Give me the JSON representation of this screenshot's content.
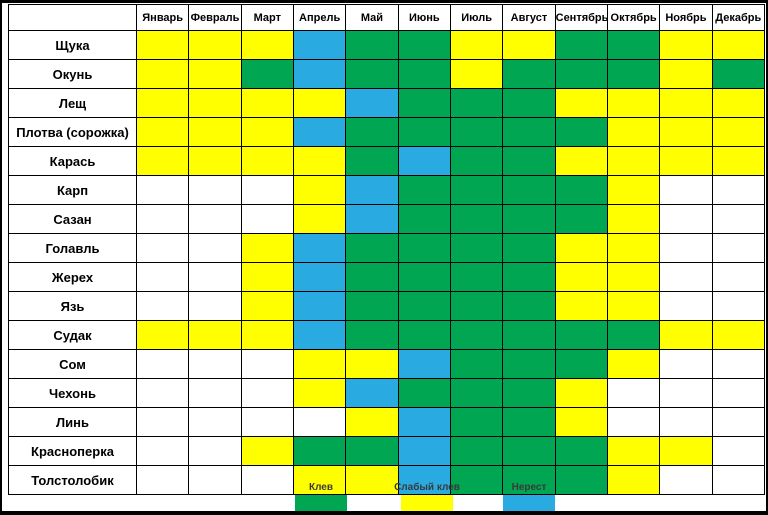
{
  "chart_data": {
    "type": "heatmap",
    "x_labels": [
      "Январь",
      "Февраль",
      "Март",
      "Апрель",
      "Май",
      "Июнь",
      "Июль",
      "Август",
      "Сентябрь",
      "Октябрь",
      "Ноябрь",
      "Декабрь"
    ],
    "corner_label": "",
    "rows": [
      {
        "name": "Щука",
        "values": [
          "weak",
          "weak",
          "weak",
          "spawn",
          "bite",
          "bite",
          "weak",
          "weak",
          "bite",
          "bite",
          "weak",
          "weak"
        ]
      },
      {
        "name": "Окунь",
        "values": [
          "weak",
          "weak",
          "bite",
          "spawn",
          "bite",
          "bite",
          "weak",
          "bite",
          "bite",
          "bite",
          "weak",
          "bite"
        ]
      },
      {
        "name": "Лещ",
        "values": [
          "weak",
          "weak",
          "weak",
          "weak",
          "spawn",
          "bite",
          "bite",
          "bite",
          "weak",
          "weak",
          "weak",
          "weak"
        ]
      },
      {
        "name": "Плотва (сорожка)",
        "values": [
          "weak",
          "weak",
          "weak",
          "spawn",
          "bite",
          "bite",
          "bite",
          "bite",
          "bite",
          "weak",
          "weak",
          "weak"
        ]
      },
      {
        "name": "Карась",
        "values": [
          "weak",
          "weak",
          "weak",
          "weak",
          "bite",
          "spawn",
          "bite",
          "bite",
          "weak",
          "weak",
          "weak",
          "weak"
        ]
      },
      {
        "name": "Карп",
        "values": [
          "none",
          "none",
          "none",
          "weak",
          "spawn",
          "bite",
          "bite",
          "bite",
          "bite",
          "weak",
          "none",
          "none"
        ]
      },
      {
        "name": "Сазан",
        "values": [
          "none",
          "none",
          "none",
          "weak",
          "spawn",
          "bite",
          "bite",
          "bite",
          "bite",
          "weak",
          "none",
          "none"
        ]
      },
      {
        "name": "Голавль",
        "values": [
          "none",
          "none",
          "weak",
          "spawn",
          "bite",
          "bite",
          "bite",
          "bite",
          "weak",
          "weak",
          "none",
          "none"
        ]
      },
      {
        "name": "Жерех",
        "values": [
          "none",
          "none",
          "weak",
          "spawn",
          "bite",
          "bite",
          "bite",
          "bite",
          "weak",
          "weak",
          "none",
          "none"
        ]
      },
      {
        "name": "Язь",
        "values": [
          "none",
          "none",
          "weak",
          "spawn",
          "bite",
          "bite",
          "bite",
          "bite",
          "weak",
          "weak",
          "none",
          "none"
        ]
      },
      {
        "name": "Судак",
        "values": [
          "weak",
          "weak",
          "weak",
          "spawn",
          "bite",
          "bite",
          "bite",
          "bite",
          "bite",
          "bite",
          "weak",
          "weak"
        ]
      },
      {
        "name": "Сом",
        "values": [
          "none",
          "none",
          "none",
          "weak",
          "weak",
          "spawn",
          "bite",
          "bite",
          "bite",
          "weak",
          "none",
          "none"
        ]
      },
      {
        "name": "Чехонь",
        "values": [
          "none",
          "none",
          "none",
          "weak",
          "spawn",
          "bite",
          "bite",
          "bite",
          "weak",
          "none",
          "none",
          "none"
        ]
      },
      {
        "name": "Линь",
        "values": [
          "none",
          "none",
          "none",
          "none",
          "weak",
          "spawn",
          "bite",
          "bite",
          "weak",
          "none",
          "none",
          "none"
        ]
      },
      {
        "name": "Красноперка",
        "values": [
          "none",
          "none",
          "weak",
          "bite",
          "bite",
          "spawn",
          "bite",
          "bite",
          "bite",
          "weak",
          "weak",
          "none"
        ]
      },
      {
        "name": "Толстолобик",
        "values": [
          "none",
          "none",
          "none",
          "weak",
          "weak",
          "spawn",
          "bite",
          "bite",
          "bite",
          "weak",
          "none",
          "none"
        ]
      }
    ],
    "cell_colors": {
      "bite": "#00a651",
      "weak": "#ffff00",
      "spawn": "#29abe2",
      "none": "#ffffff"
    },
    "legend": [
      {
        "label": "Клев",
        "value": "bite",
        "color": "#00a651"
      },
      {
        "label": "Слабый клев",
        "value": "weak",
        "color": "#ffff00"
      },
      {
        "label": "Нерест",
        "value": "spawn",
        "color": "#29abe2"
      }
    ]
  }
}
